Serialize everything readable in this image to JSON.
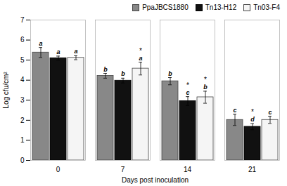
{
  "chart_data": {
    "type": "bar",
    "categories": [
      "0",
      "7",
      "14",
      "21"
    ],
    "series": [
      {
        "name": "PpaJBCS1880",
        "color": "#888888",
        "edgecolor": "#444444",
        "values": [
          5.38,
          4.22,
          3.95,
          2.02
        ],
        "errors": [
          0.25,
          0.12,
          0.18,
          0.28
        ],
        "labels": [
          "a",
          "b",
          "b",
          "c"
        ],
        "stars": [
          null,
          null,
          null,
          null
        ]
      },
      {
        "name": "Tn13-H12",
        "color": "#111111",
        "edgecolor": "#000000",
        "values": [
          5.1,
          3.98,
          2.96,
          1.68
        ],
        "errors": [
          0.1,
          0.12,
          0.22,
          0.15
        ],
        "labels": [
          "a",
          "b",
          "c",
          "d"
        ],
        "stars": [
          null,
          null,
          "*",
          "*"
        ]
      },
      {
        "name": "Tn03-F4",
        "color": "#f5f5f5",
        "edgecolor": "#444444",
        "values": [
          5.12,
          4.58,
          3.15,
          2.02
        ],
        "errors": [
          0.1,
          0.32,
          0.3,
          0.18
        ],
        "labels": [
          "a",
          "a",
          "b",
          "c"
        ],
        "stars": [
          null,
          "*",
          "*",
          null
        ]
      }
    ],
    "ylabel": "Log cfu/cm²",
    "xlabel": "Days post inoculation",
    "ylim": [
      0,
      7
    ],
    "yticks": [
      0,
      1,
      2,
      3,
      4,
      5,
      6,
      7
    ],
    "grid": false,
    "legend": "upper right"
  }
}
